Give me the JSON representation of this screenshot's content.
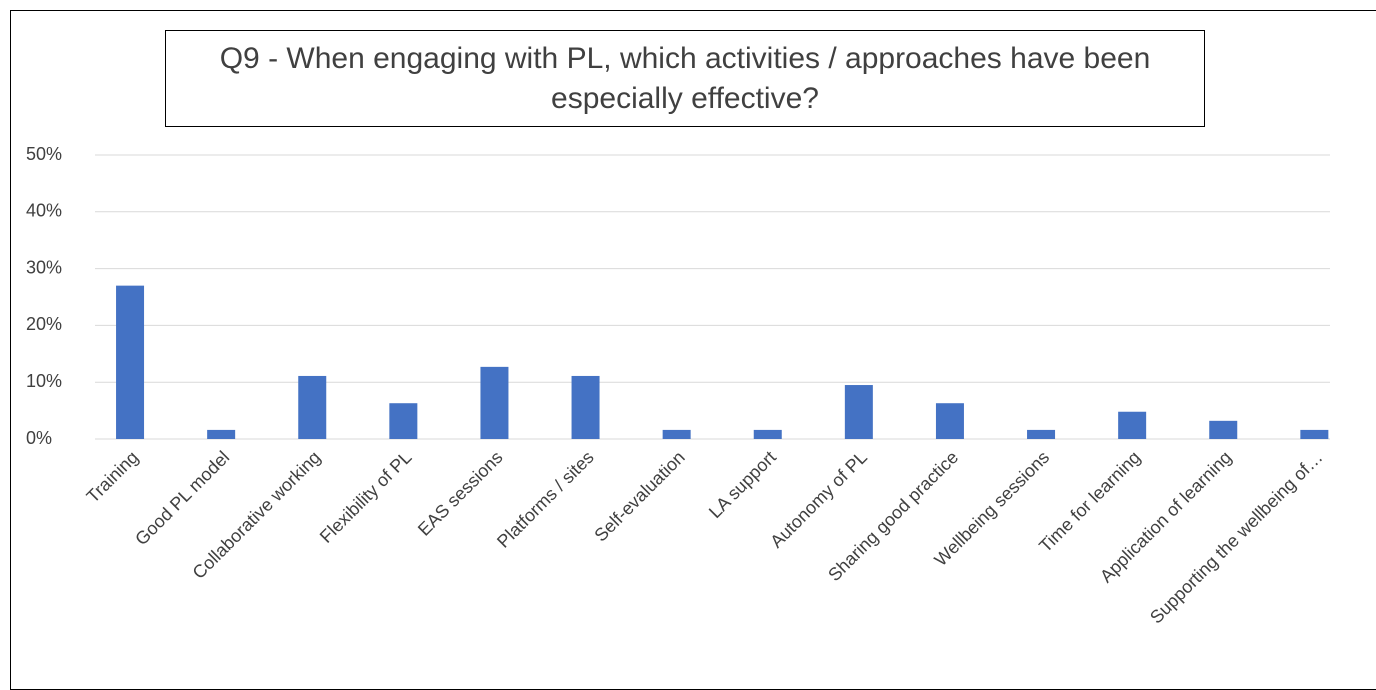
{
  "chart_data": {
    "type": "bar",
    "title": "Q9 - When engaging with PL, which activities / approaches have been especially effective?",
    "categories": [
      "Training",
      "Good PL model",
      "Collaborative working",
      "Flexibility of PL",
      "EAS sessions",
      "Platforms / sites",
      "Self-evaluation",
      "LA support",
      "Autonomy of PL",
      "Sharing good practice",
      "Wellbeing sessions",
      "Time for learning",
      "Application of learning",
      "Supporting the wellbeing of…"
    ],
    "values": [
      27,
      1.6,
      11.1,
      6.3,
      12.7,
      11.1,
      1.6,
      1.6,
      9.5,
      6.3,
      1.6,
      4.8,
      3.2,
      1.6
    ],
    "color": "#4472c4",
    "ylim": [
      0,
      50
    ],
    "yticks": [
      {
        "value": 0,
        "label": "0%"
      },
      {
        "value": 10,
        "label": "10%"
      },
      {
        "value": 20,
        "label": "20%"
      },
      {
        "value": 30,
        "label": "30%"
      },
      {
        "value": 40,
        "label": "40%"
      },
      {
        "value": 50,
        "label": "50%"
      }
    ],
    "grid": true
  }
}
